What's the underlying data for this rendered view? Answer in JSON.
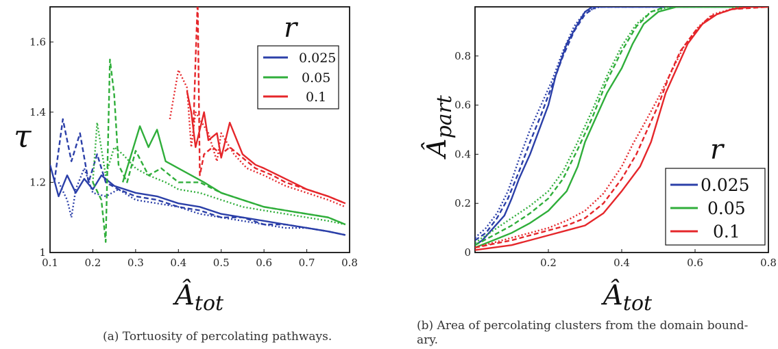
{
  "chart_data": [
    {
      "type": "line",
      "panel": "a",
      "xlabel": "Â",
      "xlabel_sub": "tot",
      "ylabel": "τ",
      "xlim": [
        0.1,
        0.8
      ],
      "ylim": [
        1.0,
        1.7
      ],
      "x_ticks": [
        "0.1",
        "0.2",
        "0.3",
        "0.4",
        "0.5",
        "0.6",
        "0.7",
        "0.8"
      ],
      "y_ticks": [
        "1",
        "1.2",
        "1.4",
        "1.6"
      ],
      "legend_title": "r",
      "legend_position": "top-right",
      "caption": "(a) Tortuosity of percolating pathways.",
      "series": [
        {
          "name": "0.025",
          "color": "#2b3fa8",
          "style": "solid",
          "x": [
            0.1,
            0.12,
            0.14,
            0.16,
            0.18,
            0.2,
            0.22,
            0.25,
            0.3,
            0.35,
            0.4,
            0.45,
            0.5,
            0.55,
            0.6,
            0.65,
            0.7,
            0.75,
            0.79
          ],
          "y": [
            1.25,
            1.16,
            1.22,
            1.17,
            1.21,
            1.18,
            1.22,
            1.19,
            1.17,
            1.16,
            1.14,
            1.13,
            1.11,
            1.1,
            1.09,
            1.08,
            1.07,
            1.06,
            1.05
          ]
        },
        {
          "name": "0.025",
          "color": "#2b3fa8",
          "style": "dashed",
          "x": [
            0.11,
            0.13,
            0.15,
            0.17,
            0.19,
            0.21,
            0.23,
            0.26,
            0.3,
            0.35,
            0.4,
            0.45,
            0.5,
            0.55,
            0.6,
            0.65,
            0.7,
            0.75,
            0.79
          ],
          "y": [
            1.2,
            1.38,
            1.26,
            1.34,
            1.2,
            1.28,
            1.2,
            1.18,
            1.16,
            1.15,
            1.13,
            1.12,
            1.1,
            1.1,
            1.08,
            1.08,
            1.07,
            1.06,
            1.05
          ]
        },
        {
          "name": "0.025",
          "color": "#2b3fa8",
          "style": "dotted",
          "x": [
            0.12,
            0.14,
            0.15,
            0.16,
            0.18,
            0.2,
            0.23,
            0.26,
            0.3,
            0.35,
            0.4,
            0.45,
            0.5,
            0.55,
            0.6,
            0.65,
            0.7,
            0.75,
            0.79
          ],
          "y": [
            1.2,
            1.15,
            1.1,
            1.18,
            1.24,
            1.17,
            1.16,
            1.18,
            1.15,
            1.14,
            1.13,
            1.11,
            1.1,
            1.09,
            1.08,
            1.07,
            1.07,
            1.06,
            1.05
          ]
        },
        {
          "name": "0.05",
          "color": "#2fae3a",
          "style": "solid",
          "x": [
            0.27,
            0.29,
            0.31,
            0.33,
            0.35,
            0.37,
            0.4,
            0.43,
            0.46,
            0.5,
            0.55,
            0.6,
            0.65,
            0.7,
            0.75,
            0.79
          ],
          "y": [
            1.2,
            1.28,
            1.36,
            1.3,
            1.35,
            1.26,
            1.24,
            1.22,
            1.2,
            1.17,
            1.15,
            1.13,
            1.12,
            1.11,
            1.1,
            1.08
          ]
        },
        {
          "name": "0.05",
          "color": "#2fae3a",
          "style": "dashed",
          "x": [
            0.2,
            0.22,
            0.23,
            0.24,
            0.25,
            0.26,
            0.28,
            0.3,
            0.33,
            0.36,
            0.4,
            0.45,
            0.5,
            0.55,
            0.6,
            0.65,
            0.7,
            0.75,
            0.79
          ],
          "y": [
            1.2,
            1.15,
            1.03,
            1.55,
            1.45,
            1.25,
            1.2,
            1.29,
            1.22,
            1.24,
            1.2,
            1.2,
            1.17,
            1.15,
            1.13,
            1.12,
            1.11,
            1.1,
            1.08
          ]
        },
        {
          "name": "0.05",
          "color": "#2fae3a",
          "style": "dotted",
          "x": [
            0.2,
            0.21,
            0.23,
            0.25,
            0.27,
            0.3,
            0.33,
            0.37,
            0.4,
            0.45,
            0.5,
            0.55,
            0.6,
            0.65,
            0.7,
            0.75,
            0.79
          ],
          "y": [
            1.2,
            1.37,
            1.22,
            1.3,
            1.28,
            1.24,
            1.22,
            1.2,
            1.18,
            1.17,
            1.15,
            1.13,
            1.12,
            1.11,
            1.1,
            1.09,
            1.08
          ]
        },
        {
          "name": "0.1",
          "color": "#e5262a",
          "style": "solid",
          "x": [
            0.42,
            0.43,
            0.44,
            0.46,
            0.47,
            0.49,
            0.5,
            0.52,
            0.55,
            0.58,
            0.6,
            0.65,
            0.7,
            0.75,
            0.79
          ],
          "y": [
            1.46,
            1.4,
            1.3,
            1.4,
            1.32,
            1.34,
            1.27,
            1.37,
            1.28,
            1.25,
            1.24,
            1.21,
            1.18,
            1.16,
            1.14
          ]
        },
        {
          "name": "0.1",
          "color": "#e5262a",
          "style": "dashed",
          "x": [
            0.435,
            0.44,
            0.445,
            0.45,
            0.46,
            0.48,
            0.5,
            0.52,
            0.55,
            0.58,
            0.62,
            0.65,
            0.7,
            0.75,
            0.79
          ],
          "y": [
            1.35,
            1.55,
            1.72,
            1.22,
            1.28,
            1.3,
            1.28,
            1.3,
            1.27,
            1.24,
            1.22,
            1.2,
            1.18,
            1.16,
            1.14
          ]
        },
        {
          "name": "0.1",
          "color": "#e5262a",
          "style": "dotted",
          "x": [
            0.38,
            0.4,
            0.42,
            0.43,
            0.44,
            0.47,
            0.49,
            0.5,
            0.53,
            0.56,
            0.6,
            0.65,
            0.7,
            0.75,
            0.79
          ],
          "y": [
            1.38,
            1.52,
            1.47,
            1.3,
            1.4,
            1.34,
            1.26,
            1.34,
            1.28,
            1.24,
            1.22,
            1.19,
            1.17,
            1.15,
            1.13
          ]
        }
      ]
    },
    {
      "type": "line",
      "panel": "b",
      "xlabel": "Â",
      "xlabel_sub": "tot",
      "ylabel": "Â",
      "ylabel_sub": "part",
      "xlim": [
        0.0,
        0.8
      ],
      "ylim": [
        0.0,
        1.0
      ],
      "x_ticks": [
        "0.2",
        "0.4",
        "0.6",
        "0.8"
      ],
      "y_ticks": [
        "0",
        "0.2",
        "0.4",
        "0.6",
        "0.8"
      ],
      "legend_title": "r",
      "legend_position": "bottom-right",
      "caption_lines": [
        "(b) Area of percolating clusters from the domain bound-",
        "ary."
      ],
      "series": [
        {
          "name": "0.025",
          "color": "#2b3fa8",
          "style": "solid",
          "x": [
            0.0,
            0.02,
            0.05,
            0.08,
            0.1,
            0.12,
            0.15,
            0.18,
            0.2,
            0.22,
            0.25,
            0.28,
            0.3,
            0.32,
            0.35,
            0.4,
            0.5,
            0.6,
            0.8
          ],
          "y": [
            0.03,
            0.05,
            0.1,
            0.15,
            0.22,
            0.3,
            0.4,
            0.52,
            0.6,
            0.72,
            0.85,
            0.93,
            0.98,
            1.0,
            1.0,
            1.0,
            1.0,
            1.0,
            1.0
          ]
        },
        {
          "name": "0.025",
          "color": "#2b3fa8",
          "style": "dashed",
          "x": [
            0.0,
            0.03,
            0.06,
            0.09,
            0.12,
            0.15,
            0.18,
            0.21,
            0.24,
            0.27,
            0.3,
            0.33,
            0.4,
            0.5,
            0.8
          ],
          "y": [
            0.05,
            0.08,
            0.14,
            0.22,
            0.33,
            0.45,
            0.56,
            0.68,
            0.8,
            0.9,
            0.97,
            1.0,
            1.0,
            1.0,
            1.0
          ]
        },
        {
          "name": "0.025",
          "color": "#2b3fa8",
          "style": "dotted",
          "x": [
            0.0,
            0.03,
            0.06,
            0.09,
            0.12,
            0.15,
            0.18,
            0.21,
            0.24,
            0.27,
            0.3,
            0.34,
            0.4,
            0.5,
            0.8
          ],
          "y": [
            0.06,
            0.1,
            0.16,
            0.25,
            0.38,
            0.5,
            0.6,
            0.7,
            0.82,
            0.92,
            0.98,
            1.0,
            1.0,
            1.0,
            1.0
          ]
        },
        {
          "name": "0.05",
          "color": "#2fae3a",
          "style": "solid",
          "x": [
            0.0,
            0.05,
            0.1,
            0.15,
            0.2,
            0.25,
            0.28,
            0.3,
            0.33,
            0.36,
            0.4,
            0.43,
            0.46,
            0.5,
            0.55,
            0.6,
            0.8
          ],
          "y": [
            0.02,
            0.05,
            0.08,
            0.12,
            0.17,
            0.25,
            0.35,
            0.45,
            0.55,
            0.65,
            0.75,
            0.85,
            0.93,
            0.98,
            1.0,
            1.0,
            1.0
          ]
        },
        {
          "name": "0.05",
          "color": "#2fae3a",
          "style": "dashed",
          "x": [
            0.0,
            0.05,
            0.1,
            0.15,
            0.2,
            0.24,
            0.28,
            0.32,
            0.36,
            0.4,
            0.44,
            0.48,
            0.52,
            0.6,
            0.8
          ],
          "y": [
            0.03,
            0.07,
            0.11,
            0.16,
            0.22,
            0.3,
            0.42,
            0.55,
            0.7,
            0.82,
            0.92,
            0.98,
            1.0,
            1.0,
            1.0
          ]
        },
        {
          "name": "0.05",
          "color": "#2fae3a",
          "style": "dotted",
          "x": [
            0.0,
            0.05,
            0.1,
            0.15,
            0.2,
            0.24,
            0.28,
            0.32,
            0.36,
            0.4,
            0.44,
            0.48,
            0.53,
            0.6,
            0.8
          ],
          "y": [
            0.04,
            0.09,
            0.14,
            0.19,
            0.25,
            0.33,
            0.45,
            0.58,
            0.72,
            0.84,
            0.93,
            0.98,
            1.0,
            1.0,
            1.0
          ]
        },
        {
          "name": "0.1",
          "color": "#e5262a",
          "style": "solid",
          "x": [
            0.0,
            0.1,
            0.2,
            0.25,
            0.3,
            0.35,
            0.4,
            0.45,
            0.48,
            0.5,
            0.52,
            0.55,
            0.58,
            0.62,
            0.66,
            0.7,
            0.75,
            0.8
          ],
          "y": [
            0.01,
            0.03,
            0.07,
            0.09,
            0.11,
            0.16,
            0.25,
            0.35,
            0.45,
            0.55,
            0.65,
            0.75,
            0.85,
            0.93,
            0.97,
            0.99,
            1.0,
            1.0
          ]
        },
        {
          "name": "0.1",
          "color": "#e5262a",
          "style": "dashed",
          "x": [
            0.0,
            0.1,
            0.2,
            0.25,
            0.3,
            0.35,
            0.4,
            0.44,
            0.47,
            0.5,
            0.53,
            0.56,
            0.6,
            0.64,
            0.7,
            0.8
          ],
          "y": [
            0.02,
            0.05,
            0.09,
            0.11,
            0.14,
            0.2,
            0.3,
            0.4,
            0.5,
            0.6,
            0.72,
            0.82,
            0.9,
            0.96,
            0.99,
            1.0
          ]
        },
        {
          "name": "0.1",
          "color": "#e5262a",
          "style": "dotted",
          "x": [
            0.0,
            0.1,
            0.2,
            0.25,
            0.3,
            0.35,
            0.4,
            0.43,
            0.46,
            0.5,
            0.54,
            0.57,
            0.61,
            0.65,
            0.72,
            0.8
          ],
          "y": [
            0.02,
            0.06,
            0.1,
            0.13,
            0.17,
            0.24,
            0.35,
            0.44,
            0.52,
            0.63,
            0.75,
            0.84,
            0.92,
            0.97,
            1.0,
            1.0
          ]
        }
      ]
    }
  ]
}
